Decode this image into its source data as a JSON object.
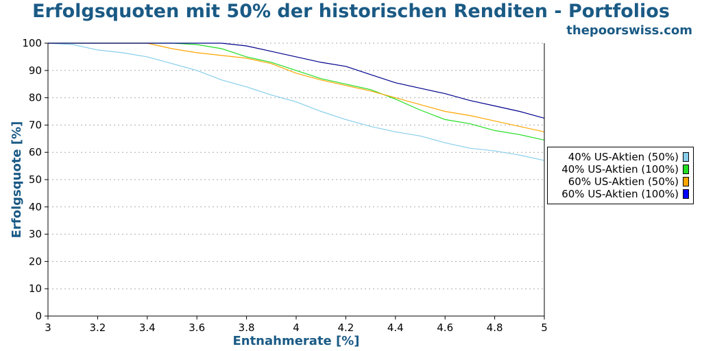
{
  "chart_data": {
    "type": "line",
    "title": "Erfolgsquoten mit 50% der historischen Renditen - Portfolios",
    "source": "thepoorswiss.com",
    "xlabel": "Entnahmerate [%]",
    "ylabel": "Erfolgsquote [%]",
    "xlim": [
      3,
      5
    ],
    "ylim": [
      0,
      100
    ],
    "xticks": [
      "3",
      "3.2",
      "3.4",
      "3.6",
      "3.8",
      "4",
      "4.2",
      "4.4",
      "4.6",
      "4.8",
      "5"
    ],
    "yticks": [
      "0",
      "10",
      "20",
      "30",
      "40",
      "50",
      "60",
      "70",
      "80",
      "90",
      "100"
    ],
    "grid": true,
    "legend_position": "right",
    "x": [
      3.0,
      3.1,
      3.2,
      3.3,
      3.4,
      3.5,
      3.6,
      3.7,
      3.8,
      3.9,
      4.0,
      4.1,
      4.2,
      4.3,
      4.4,
      4.5,
      4.6,
      4.7,
      4.8,
      4.9,
      5.0
    ],
    "series": [
      {
        "name": "40% US-Aktien (50%)",
        "color": "#87ceeb",
        "values": [
          100,
          99.5,
          97.5,
          96.5,
          95,
          92.5,
          90,
          86.5,
          84,
          81,
          78.5,
          75,
          72,
          69.5,
          67.5,
          66,
          63.5,
          61.5,
          60.5,
          59,
          57
        ]
      },
      {
        "name": "40% US-Aktien (100%)",
        "color": "#22dd22",
        "values": [
          100,
          100,
          100,
          100,
          100,
          100,
          99.5,
          98,
          95,
          93,
          90,
          87,
          85,
          83,
          79.5,
          75.5,
          72,
          70.5,
          68,
          66.5,
          64.5
        ]
      },
      {
        "name": "60% US-Aktien (50%)",
        "color": "#ffa500",
        "values": [
          100,
          100,
          100,
          100,
          100,
          98,
          96.5,
          95.5,
          94.5,
          92.5,
          89,
          86.5,
          84.5,
          82.5,
          80,
          77.5,
          75,
          73.5,
          71.5,
          69.5,
          67.5
        ]
      },
      {
        "name": "60% US-Aktien (100%)",
        "color": "#00008b",
        "values": [
          100,
          100,
          100,
          100,
          100,
          100,
          100,
          100,
          99,
          97,
          95,
          93,
          91.5,
          88.5,
          85.5,
          83.5,
          81.5,
          79,
          77,
          75,
          72.5
        ]
      }
    ]
  }
}
